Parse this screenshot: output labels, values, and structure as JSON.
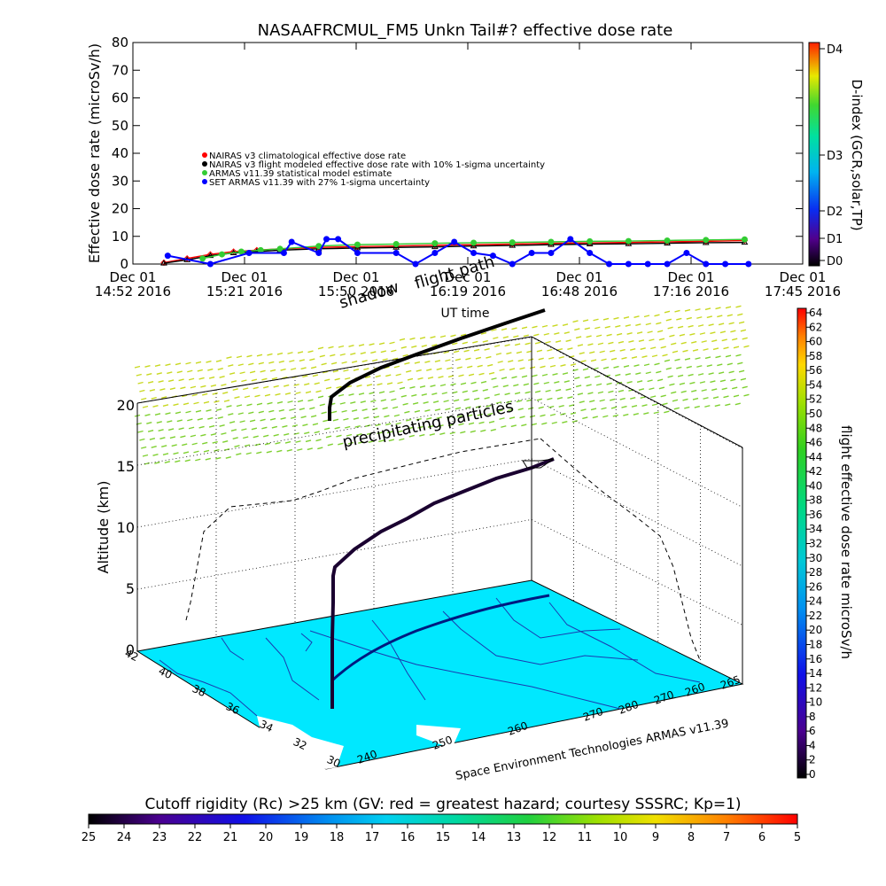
{
  "dose_chart": {
    "title": "NASAAFRCMUL_FM5 Unkn Tail#? effective dose rate",
    "ylabel": "Effective dose rate (microSv/h)",
    "xlabel": "UT time",
    "y_ticks": [
      "0",
      "10",
      "20",
      "30",
      "40",
      "50",
      "60",
      "70",
      "80"
    ],
    "x_ticks": [
      {
        "date": "Dec 01",
        "time": "14:52 2016"
      },
      {
        "date": "Dec 01",
        "time": "15:21 2016"
      },
      {
        "date": "Dec 01",
        "time": "15:50 2016"
      },
      {
        "date": "Dec 01",
        "time": "16:19 2016"
      },
      {
        "date": "Dec 01",
        "time": "16:48 2016"
      },
      {
        "date": "Dec 01",
        "time": "17:16 2016"
      },
      {
        "date": "Dec 01",
        "time": "17:45 2016"
      }
    ],
    "legend": [
      {
        "label": "NAIRAS v3 climatological effective dose rate",
        "color": "#ff0000",
        "marker": "diamond"
      },
      {
        "label": "NAIRAS v3 flight modeled effective dose rate with 10% 1-sigma uncertainty",
        "color": "#000000",
        "marker": "triangle"
      },
      {
        "label": "ARMAS v11.39 statistical model estimate",
        "color": "#33cc33",
        "marker": "asterisk"
      },
      {
        "label": "SET ARMAS v11.39 with 27% 1-sigma uncertainty",
        "color": "#0000ff",
        "marker": "dot"
      }
    ],
    "d_index": {
      "label": "D-index (GCR,solar,TP)",
      "ticks": [
        "D0",
        "D1",
        "D2",
        "D3",
        "D4"
      ]
    }
  },
  "altitude_chart": {
    "ylabel": "Altitude (km)",
    "z_ticks": [
      "0",
      "5",
      "10",
      "15",
      "20"
    ],
    "lat_ticks": [
      "42",
      "40",
      "38",
      "36",
      "34",
      "32",
      "30"
    ],
    "lon_ticks_front": [
      "240",
      "250",
      "260",
      "270"
    ],
    "lon_ticks_right": [
      "280",
      "270",
      "260",
      "265"
    ],
    "annotations": {
      "flight_path": "flight path",
      "shadow": "shadow",
      "precipitating": "precipitating particles",
      "credit": "Space Environment Technologies ARMAS v11.39"
    },
    "dose_colorbar": {
      "label": "flight effective dose rate microSv/h",
      "ticks": [
        "0",
        "2",
        "4",
        "6",
        "8",
        "10",
        "12",
        "14",
        "16",
        "18",
        "20",
        "22",
        "24",
        "26",
        "28",
        "30",
        "32",
        "34",
        "36",
        "38",
        "40",
        "42",
        "44",
        "46",
        "48",
        "50",
        "52",
        "54",
        "56",
        "58",
        "60",
        "62",
        "64"
      ]
    }
  },
  "rigidity_bar": {
    "title": "Cutoff rigidity (Rc) >25 km (GV: red = greatest hazard; courtesy SSSRC; Kp=1)",
    "ticks": [
      "25",
      "24",
      "23",
      "22",
      "21",
      "20",
      "19",
      "18",
      "17",
      "16",
      "15",
      "14",
      "13",
      "12",
      "11",
      "10",
      "9",
      "8",
      "7",
      "6",
      "5"
    ]
  },
  "chart_data": {
    "type": "scatter",
    "title": "NASAAFRCMUL_FM5 Unkn Tail#? effective dose rate",
    "xlabel": "UT time",
    "ylabel": "Effective dose rate (microSv/h)",
    "ylim": [
      0,
      80
    ],
    "x_domain": [
      "14:52",
      "17:45"
    ],
    "series": [
      {
        "name": "NAIRAS v3 climatological effective dose rate",
        "x": [
          "15:00",
          "15:06",
          "15:12",
          "15:18",
          "15:24",
          "15:30",
          "15:40",
          "15:50",
          "16:00",
          "16:10",
          "16:20",
          "16:30",
          "16:40",
          "16:50",
          "17:00",
          "17:10",
          "17:20",
          "17:30"
        ],
        "y": [
          0.5,
          2,
          3.5,
          4.5,
          5,
          5.5,
          6,
          6.3,
          6.5,
          6.8,
          7,
          7.2,
          7.5,
          7.6,
          7.8,
          8,
          8.2,
          8.5
        ]
      },
      {
        "name": "NAIRAS v3 flight modeled effective dose rate with 10% 1-sigma uncertainty",
        "x": [
          "15:00",
          "15:06",
          "15:12",
          "15:18",
          "15:24",
          "15:30",
          "15:40",
          "15:50",
          "16:00",
          "16:10",
          "16:20",
          "16:30",
          "16:40",
          "16:50",
          "17:00",
          "17:10",
          "17:20",
          "17:30"
        ],
        "y": [
          0.3,
          1.5,
          3,
          4,
          4.5,
          5,
          5.5,
          5.8,
          6,
          6.2,
          6.5,
          6.7,
          7,
          7.2,
          7.3,
          7.5,
          7.7,
          7.8
        ]
      },
      {
        "name": "ARMAS v11.39 statistical model estimate",
        "x": [
          "15:10",
          "15:15",
          "15:20",
          "15:25",
          "15:30",
          "15:40",
          "15:50",
          "16:00",
          "16:10",
          "16:20",
          "16:30",
          "16:40",
          "16:50",
          "17:00",
          "17:10",
          "17:20",
          "17:30"
        ],
        "y": [
          2,
          3.5,
          4.5,
          5,
          5.5,
          6.5,
          7,
          7.2,
          7.5,
          7.7,
          7.8,
          8,
          8.2,
          8.3,
          8.5,
          8.7,
          8.9
        ]
      },
      {
        "name": "SET ARMAS v11.39 with 27% 1-sigma uncertainty",
        "x": [
          "15:01",
          "15:12",
          "15:22",
          "15:31",
          "15:33",
          "15:40",
          "15:42",
          "15:45",
          "15:50",
          "16:00",
          "16:05",
          "16:10",
          "16:15",
          "16:20",
          "16:25",
          "16:30",
          "16:35",
          "16:40",
          "16:45",
          "16:50",
          "16:55",
          "17:00",
          "17:05",
          "17:10",
          "17:15",
          "17:20",
          "17:25",
          "17:31"
        ],
        "y": [
          3,
          0,
          4,
          4,
          8,
          4,
          9,
          9,
          4,
          4,
          0,
          4,
          8,
          4,
          3,
          0,
          4,
          4,
          9,
          4,
          0,
          0,
          0,
          0,
          4,
          0,
          0,
          0
        ]
      }
    ],
    "d_index_levels": [
      "D0",
      "D1",
      "D2",
      "D3",
      "D4"
    ]
  }
}
